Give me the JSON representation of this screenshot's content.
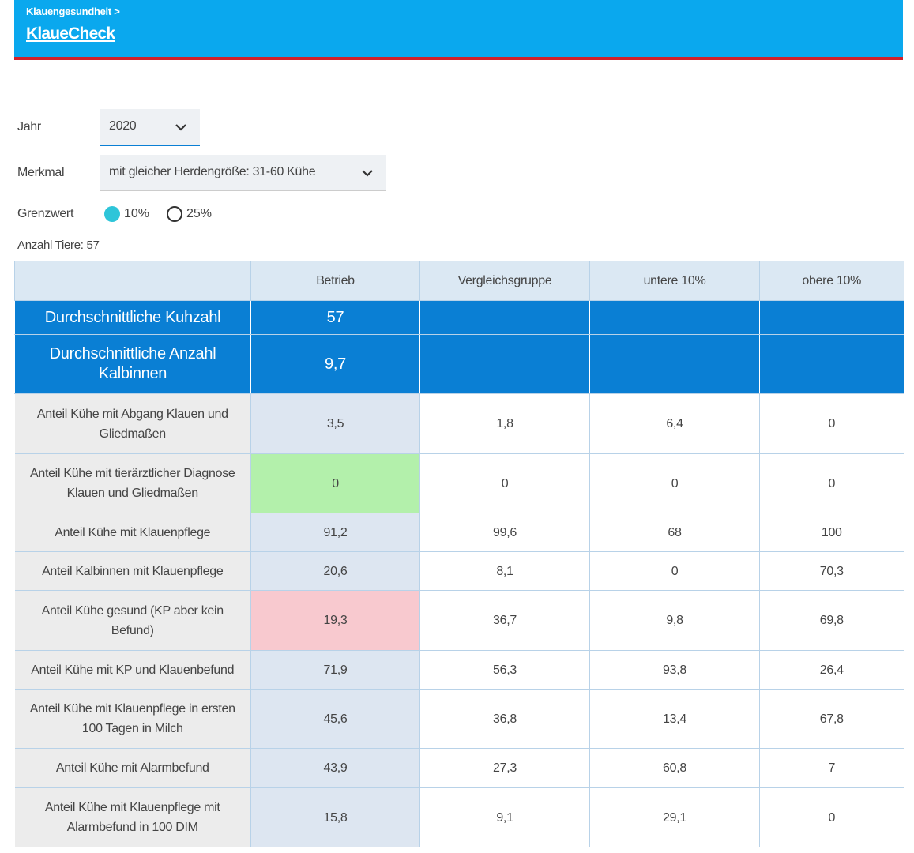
{
  "header": {
    "breadcrumb": "Klauengesundheit >",
    "title": "KlaueCheck"
  },
  "filters": {
    "year": {
      "label": "Jahr",
      "value": "2020"
    },
    "feature": {
      "label": "Merkmal",
      "value": "mit gleicher Herdengröße: 31-60 Kühe"
    },
    "threshold": {
      "label": "Grenzwert",
      "options": [
        "10%",
        "25%"
      ]
    }
  },
  "animal_count": {
    "label": "Anzahl Tiere:",
    "value": "57"
  },
  "table": {
    "columns": [
      "Betrieb",
      "Vergleichsgruppe",
      "untere 10%",
      "obere 10%"
    ],
    "summary_rows": [
      [
        "Durchschnittliche Kuhzahl",
        "57"
      ],
      [
        "Durchschnittliche Anzahl Kalbinnen",
        "9,7"
      ]
    ],
    "rows": [
      [
        "Anteil Kühe mit Abgang Klauen und Gliedmaßen",
        "3,5",
        "1,8",
        "6,4",
        "0"
      ],
      [
        "Anteil Kühe mit tierärztlicher Diagnose Klauen und Gliedmaßen",
        "0",
        "0",
        "0",
        "0"
      ],
      [
        "Anteil Kühe mit Klauenpflege",
        "91,2",
        "99,6",
        "68",
        "100"
      ],
      [
        "Anteil Kalbinnen mit Klauenpflege",
        "20,6",
        "8,1",
        "0",
        "70,3"
      ],
      [
        "Anteil Kühe gesund (KP aber kein Befund)",
        "19,3",
        "36,7",
        "9,8",
        "69,8"
      ],
      [
        "Anteil Kühe mit KP und Klauenbefund",
        "71,9",
        "56,3",
        "93,8",
        "26,4"
      ],
      [
        "Anteil Kühe mit Klauenpflege in ersten 100 Tagen in Milch",
        "45,6",
        "36,8",
        "13,4",
        "67,8"
      ],
      [
        "Anteil Kühe mit Alarmbefund",
        "43,9",
        "27,3",
        "60,8",
        "7"
      ],
      [
        "Anteil Kühe mit Klauenpflege mit Alarmbefund in 100 DIM",
        "15,8",
        "9,1",
        "29,1",
        "0"
      ]
    ]
  }
}
